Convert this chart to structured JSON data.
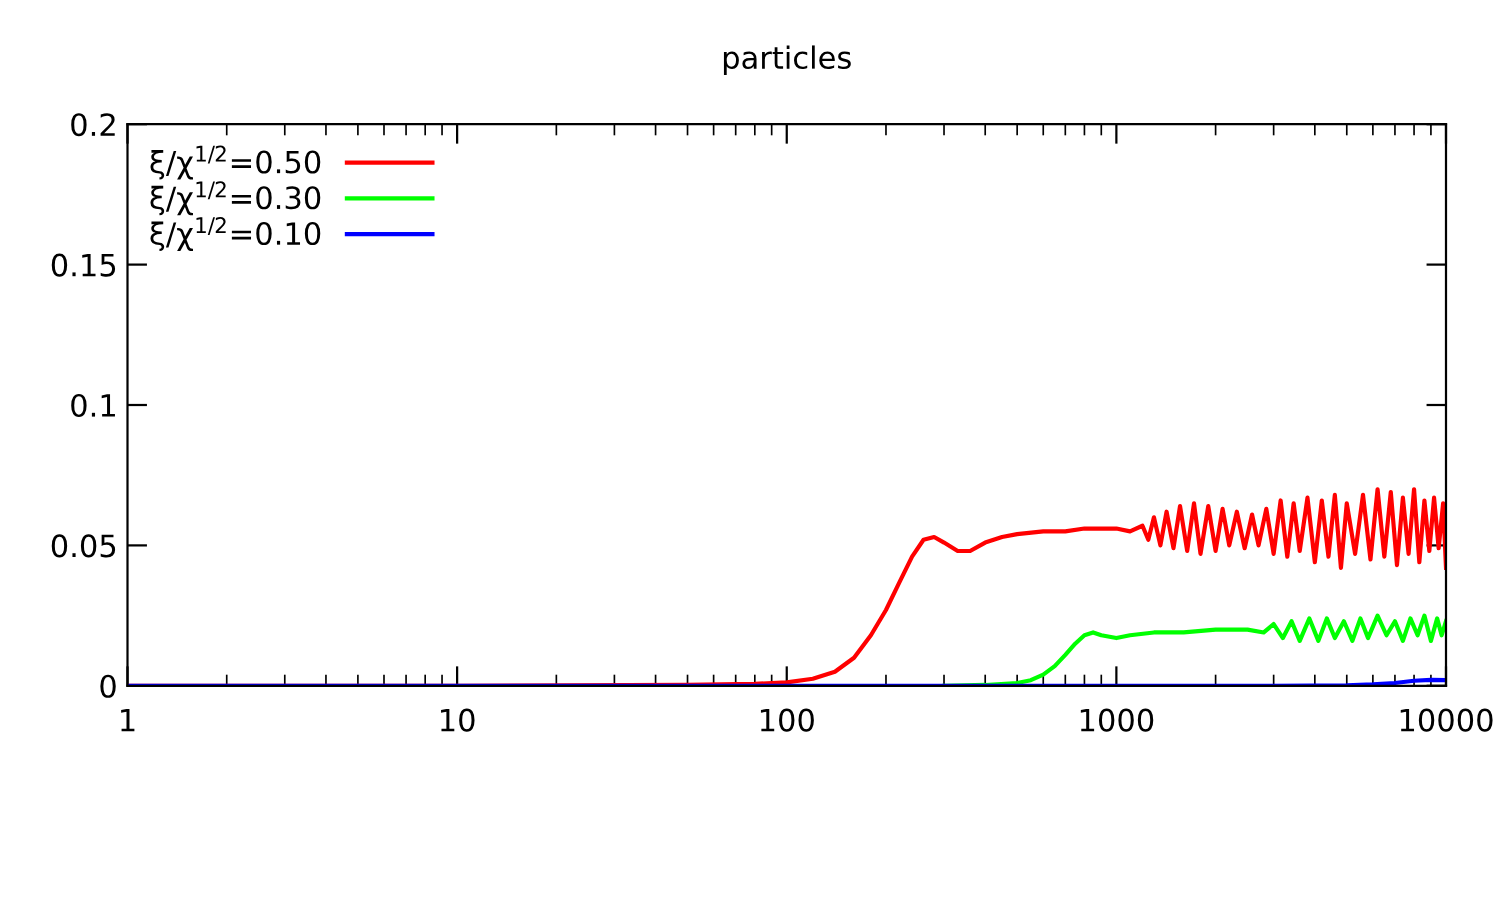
{
  "chart_data": {
    "type": "line",
    "title": "particles",
    "log": "x",
    "xlim": [
      1,
      10000
    ],
    "xticks": [
      1,
      10,
      100,
      1000,
      10000
    ],
    "ylim": [
      0,
      0.2
    ],
    "yticks": [
      0,
      0.05,
      0.1,
      0.15,
      0.2
    ],
    "grid": false,
    "legend": "top left",
    "marker": "none",
    "line_style": "solid",
    "series": [
      {
        "name": "ξ/χ$^{1/2}$=0.50",
        "color": "#ff0000",
        "x": [
          1,
          10,
          50,
          80,
          100,
          120,
          140,
          160,
          180,
          200,
          220,
          240,
          260,
          280,
          300,
          330,
          360,
          400,
          450,
          500,
          600,
          700,
          800,
          900,
          1000,
          1100,
          1200,
          1250,
          1300,
          1360,
          1420,
          1490,
          1560,
          1640,
          1720,
          1800,
          1900,
          2000,
          2100,
          2200,
          2320,
          2450,
          2580,
          2700,
          2850,
          3000,
          3150,
          3300,
          3450,
          3600,
          3800,
          4000,
          4200,
          4400,
          4600,
          4800,
          5000,
          5300,
          5600,
          5900,
          6200,
          6500,
          6800,
          7100,
          7400,
          7700,
          8000,
          8300,
          8600,
          8900,
          9200,
          9500,
          9800,
          10000
        ],
        "values": [
          0,
          0,
          0.0003,
          0.0007,
          0.0012,
          0.0025,
          0.005,
          0.01,
          0.018,
          0.027,
          0.037,
          0.046,
          0.052,
          0.053,
          0.051,
          0.048,
          0.048,
          0.051,
          0.053,
          0.054,
          0.055,
          0.055,
          0.056,
          0.056,
          0.056,
          0.055,
          0.057,
          0.052,
          0.06,
          0.05,
          0.062,
          0.049,
          0.064,
          0.048,
          0.065,
          0.047,
          0.064,
          0.048,
          0.063,
          0.05,
          0.062,
          0.049,
          0.061,
          0.05,
          0.063,
          0.047,
          0.066,
          0.046,
          0.065,
          0.048,
          0.067,
          0.044,
          0.066,
          0.046,
          0.068,
          0.042,
          0.065,
          0.047,
          0.068,
          0.045,
          0.07,
          0.046,
          0.069,
          0.043,
          0.067,
          0.047,
          0.07,
          0.044,
          0.066,
          0.048,
          0.067,
          0.049,
          0.065,
          0.042
        ]
      },
      {
        "name": "ξ/χ$^{1/2}$=0.30",
        "color": "#00ff00",
        "x": [
          300,
          400,
          500,
          550,
          600,
          650,
          700,
          750,
          800,
          850,
          900,
          1000,
          1100,
          1300,
          1600,
          2000,
          2500,
          2800,
          3000,
          3200,
          3400,
          3600,
          3850,
          4100,
          4350,
          4600,
          4900,
          5200,
          5500,
          5800,
          6200,
          6600,
          7000,
          7400,
          7800,
          8200,
          8600,
          9000,
          9400,
          9700,
          10000
        ],
        "values": [
          0,
          0.0003,
          0.001,
          0.002,
          0.004,
          0.007,
          0.011,
          0.015,
          0.018,
          0.019,
          0.018,
          0.017,
          0.018,
          0.019,
          0.019,
          0.02,
          0.02,
          0.019,
          0.022,
          0.017,
          0.023,
          0.016,
          0.024,
          0.016,
          0.024,
          0.017,
          0.023,
          0.016,
          0.024,
          0.017,
          0.025,
          0.018,
          0.023,
          0.016,
          0.024,
          0.018,
          0.025,
          0.016,
          0.024,
          0.018,
          0.023
        ]
      },
      {
        "name": "ξ/χ$^{1/2}$=0.10",
        "color": "#0000ff",
        "x": [
          1,
          1000,
          3000,
          5000,
          6000,
          7000,
          8000,
          9000,
          10000
        ],
        "values": [
          0,
          0,
          0,
          0.0002,
          0.0005,
          0.001,
          0.0018,
          0.0021,
          0.002
        ]
      }
    ]
  }
}
